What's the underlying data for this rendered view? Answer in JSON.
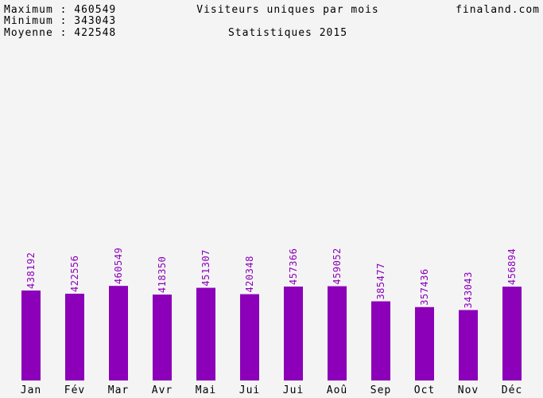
{
  "stats": {
    "max_line": "Maximum : 460549",
    "min_line": "Minimum : 343043",
    "avg_line": "Moyenne : 422548"
  },
  "header": {
    "title": "Visiteurs uniques par mois",
    "subtitle": "Statistiques 2015",
    "site": "finaland.com"
  },
  "colors": {
    "bar": "#8b00b8",
    "value_label": "#8b00b8",
    "background": "#f4f4f4"
  },
  "chart_data": {
    "type": "bar",
    "title": "Visiteurs uniques par mois",
    "subtitle": "Statistiques 2015",
    "categories": [
      "Jan",
      "Fév",
      "Mar",
      "Avr",
      "Mai",
      "Jui",
      "Jui",
      "Aoû",
      "Sep",
      "Oct",
      "Nov",
      "Déc"
    ],
    "values": [
      438192,
      422556,
      460549,
      418350,
      451307,
      420348,
      457366,
      459052,
      385477,
      357436,
      343043,
      456894
    ],
    "ylim": [
      0,
      1000000
    ],
    "grid": false,
    "legend": "none"
  }
}
